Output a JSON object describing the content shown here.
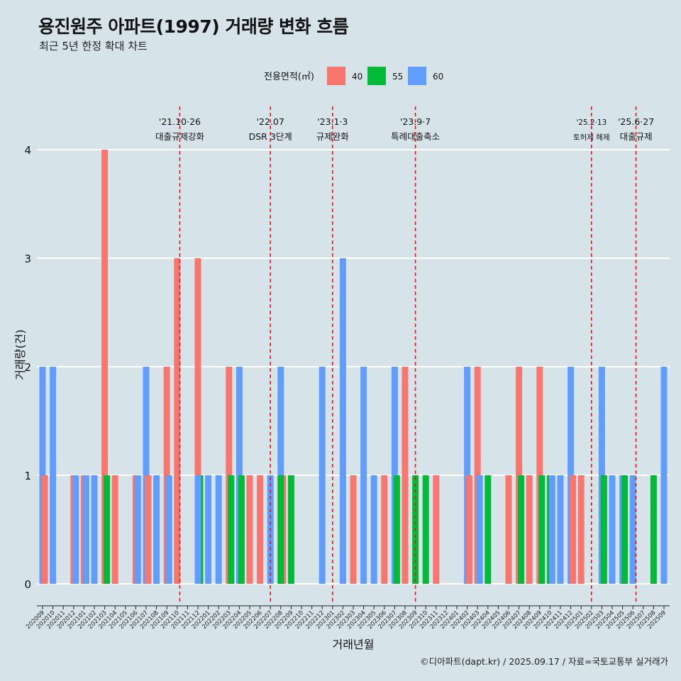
{
  "title": "용진원주 아파트(1997) 거래량 변화 흐름",
  "subtitle": "최근 5년 한정 확대 차트",
  "footer": "©디아파트(dapt.kr) / 2025.09.17 / 자료=국토교통부 실거래가",
  "chart_data": {
    "type": "bar",
    "xlabel": "거래년월",
    "ylabel": "거래량(건)",
    "ylim": [
      0,
      4
    ],
    "yticks": [
      0,
      1,
      2,
      3,
      4
    ],
    "grid": true,
    "legend": {
      "title": "전용면적(㎡)",
      "position": "top",
      "entries": [
        {
          "name": "40",
          "color": "#f8766d"
        },
        {
          "name": "55",
          "color": "#00ba38"
        },
        {
          "name": "60",
          "color": "#619cff"
        }
      ]
    },
    "categories": [
      "202009",
      "202010",
      "202011",
      "202012",
      "202101",
      "202102",
      "202103",
      "202104",
      "202105",
      "202106",
      "202107",
      "202108",
      "202109",
      "202110",
      "202111",
      "202112",
      "202201",
      "202202",
      "202203",
      "202204",
      "202205",
      "202206",
      "202207",
      "202208",
      "202209",
      "202210",
      "202211",
      "202212",
      "202301",
      "202302",
      "202303",
      "202304",
      "202305",
      "202306",
      "202307",
      "202308",
      "202309",
      "202310",
      "202311",
      "202312",
      "202401",
      "202402",
      "202403",
      "202404",
      "202405",
      "202406",
      "202407",
      "202408",
      "202409",
      "202410",
      "202411",
      "202412",
      "202501",
      "202502",
      "202503",
      "202504",
      "202505",
      "202506",
      "202507",
      "202508",
      "202509"
    ],
    "bars": [
      {
        "cat": "202009",
        "segments": [
          {
            "size": "40",
            "value": 1
          },
          {
            "size": "60",
            "value": 2
          }
        ]
      },
      {
        "cat": "202010",
        "segments": [
          {
            "size": "60",
            "value": 2
          }
        ]
      },
      {
        "cat": "202012",
        "segments": [
          {
            "size": "40",
            "value": 1
          },
          {
            "size": "60",
            "value": 1
          }
        ]
      },
      {
        "cat": "202101",
        "segments": [
          {
            "size": "40",
            "value": 1
          },
          {
            "size": "60",
            "value": 1
          }
        ]
      },
      {
        "cat": "202102",
        "segments": [
          {
            "size": "60",
            "value": 1
          }
        ]
      },
      {
        "cat": "202103",
        "segments": [
          {
            "size": "40",
            "value": 4
          },
          {
            "size": "55",
            "value": 1
          }
        ]
      },
      {
        "cat": "202104",
        "segments": [
          {
            "size": "40",
            "value": 1
          }
        ]
      },
      {
        "cat": "202106",
        "segments": [
          {
            "size": "40",
            "value": 1
          },
          {
            "size": "60",
            "value": 1
          }
        ]
      },
      {
        "cat": "202107",
        "segments": [
          {
            "size": "40",
            "value": 1
          },
          {
            "size": "60",
            "value": 2
          }
        ]
      },
      {
        "cat": "202108",
        "segments": [
          {
            "size": "60",
            "value": 1
          }
        ]
      },
      {
        "cat": "202109",
        "segments": [
          {
            "size": "40",
            "value": 2
          },
          {
            "size": "60",
            "value": 1
          }
        ]
      },
      {
        "cat": "202110",
        "segments": [
          {
            "size": "40",
            "value": 3
          }
        ]
      },
      {
        "cat": "202112",
        "segments": [
          {
            "size": "40",
            "value": 3
          },
          {
            "size": "55",
            "value": 1
          },
          {
            "size": "60",
            "value": 1
          }
        ]
      },
      {
        "cat": "202201",
        "segments": [
          {
            "size": "60",
            "value": 1
          }
        ]
      },
      {
        "cat": "202202",
        "segments": [
          {
            "size": "60",
            "value": 1
          }
        ]
      },
      {
        "cat": "202203",
        "segments": [
          {
            "size": "40",
            "value": 2
          },
          {
            "size": "55",
            "value": 1
          }
        ]
      },
      {
        "cat": "202204",
        "segments": [
          {
            "size": "55",
            "value": 1
          },
          {
            "size": "60",
            "value": 2
          }
        ]
      },
      {
        "cat": "202205",
        "segments": [
          {
            "size": "40",
            "value": 1
          }
        ]
      },
      {
        "cat": "202206",
        "segments": [
          {
            "size": "40",
            "value": 1
          }
        ]
      },
      {
        "cat": "202207",
        "segments": [
          {
            "size": "60",
            "value": 1
          }
        ]
      },
      {
        "cat": "202208",
        "segments": [
          {
            "size": "40",
            "value": 1
          },
          {
            "size": "60",
            "value": 2
          },
          {
            "size": "55",
            "value": 1
          }
        ]
      },
      {
        "cat": "202209",
        "segments": [
          {
            "size": "55",
            "value": 1
          }
        ]
      },
      {
        "cat": "202212",
        "segments": [
          {
            "size": "60",
            "value": 2
          }
        ]
      },
      {
        "cat": "202302",
        "segments": [
          {
            "size": "60",
            "value": 3
          }
        ]
      },
      {
        "cat": "202303",
        "segments": [
          {
            "size": "40",
            "value": 1
          }
        ]
      },
      {
        "cat": "202304",
        "segments": [
          {
            "size": "60",
            "value": 2
          }
        ]
      },
      {
        "cat": "202305",
        "segments": [
          {
            "size": "60",
            "value": 1
          }
        ]
      },
      {
        "cat": "202306",
        "segments": [
          {
            "size": "40",
            "value": 1
          }
        ]
      },
      {
        "cat": "202307",
        "segments": [
          {
            "size": "55",
            "value": 1
          },
          {
            "size": "60",
            "value": 2
          }
        ]
      },
      {
        "cat": "202308",
        "segments": [
          {
            "size": "40",
            "value": 2
          }
        ]
      },
      {
        "cat": "202309",
        "segments": [
          {
            "size": "55",
            "value": 1
          }
        ]
      },
      {
        "cat": "202310",
        "segments": [
          {
            "size": "55",
            "value": 1
          }
        ]
      },
      {
        "cat": "202311",
        "segments": [
          {
            "size": "40",
            "value": 1
          }
        ]
      },
      {
        "cat": "202402",
        "segments": [
          {
            "size": "40",
            "value": 1
          },
          {
            "size": "60",
            "value": 2
          }
        ]
      },
      {
        "cat": "202403",
        "segments": [
          {
            "size": "40",
            "value": 2
          },
          {
            "size": "60",
            "value": 1
          }
        ]
      },
      {
        "cat": "202404",
        "segments": [
          {
            "size": "55",
            "value": 1
          }
        ]
      },
      {
        "cat": "202406",
        "segments": [
          {
            "size": "40",
            "value": 1
          }
        ]
      },
      {
        "cat": "202407",
        "segments": [
          {
            "size": "40",
            "value": 2
          },
          {
            "size": "55",
            "value": 1
          }
        ]
      },
      {
        "cat": "202408",
        "segments": [
          {
            "size": "40",
            "value": 1
          }
        ]
      },
      {
        "cat": "202409",
        "segments": [
          {
            "size": "40",
            "value": 2
          },
          {
            "size": "55",
            "value": 1
          }
        ]
      },
      {
        "cat": "202410",
        "segments": [
          {
            "size": "55",
            "value": 1
          },
          {
            "size": "60",
            "value": 1
          }
        ]
      },
      {
        "cat": "202411",
        "segments": [
          {
            "size": "60",
            "value": 1
          }
        ]
      },
      {
        "cat": "202412",
        "segments": [
          {
            "size": "40",
            "value": 1
          },
          {
            "size": "60",
            "value": 2
          }
        ]
      },
      {
        "cat": "202501",
        "segments": [
          {
            "size": "40",
            "value": 1
          }
        ]
      },
      {
        "cat": "202503",
        "segments": [
          {
            "size": "55",
            "value": 1
          },
          {
            "size": "60",
            "value": 2
          }
        ]
      },
      {
        "cat": "202504",
        "segments": [
          {
            "size": "60",
            "value": 1
          }
        ]
      },
      {
        "cat": "202505",
        "segments": [
          {
            "size": "60",
            "value": 1
          },
          {
            "size": "55",
            "value": 1
          }
        ]
      },
      {
        "cat": "202506",
        "segments": [
          {
            "size": "60",
            "value": 1
          }
        ]
      },
      {
        "cat": "202508",
        "segments": [
          {
            "size": "55",
            "value": 1
          }
        ]
      },
      {
        "cat": "202509",
        "segments": [
          {
            "size": "60",
            "value": 2
          }
        ]
      }
    ],
    "events": [
      {
        "cat": "202110",
        "offset": 0.25,
        "date": "'21.10·26",
        "label": "대출규제강화",
        "small": false
      },
      {
        "cat": "202207",
        "offset": 0.0,
        "date": "'22.07",
        "label": "DSR 3단계",
        "small": false
      },
      {
        "cat": "202301",
        "offset": 0.0,
        "date": "'23.1·3",
        "label": "규제완화",
        "small": false
      },
      {
        "cat": "202309",
        "offset": 0.0,
        "date": "'23.9·7",
        "label": "특례대출축소",
        "small": false
      },
      {
        "cat": "202502",
        "offset": 0.0,
        "date": "'25.2·13",
        "label": "토허제 해제",
        "small": true
      },
      {
        "cat": "202506",
        "offset": 0.3,
        "date": "'25.6·27",
        "label": "대출규제",
        "small": false
      }
    ]
  }
}
